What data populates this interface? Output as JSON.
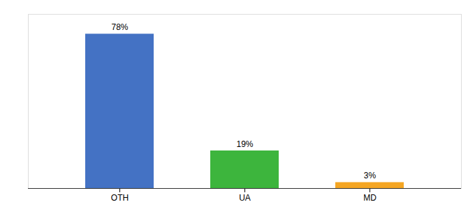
{
  "chart_data": {
    "type": "bar",
    "categories": [
      "OTH",
      "UA",
      "MD"
    ],
    "values": [
      78,
      19,
      3
    ],
    "value_labels": [
      "78%",
      "19%",
      "3%"
    ],
    "colors": [
      "#4472c4",
      "#3db53d",
      "#f5a623"
    ],
    "ylim": [
      0,
      88
    ],
    "tick_labels": "x",
    "data_labels": true,
    "grid": false
  }
}
